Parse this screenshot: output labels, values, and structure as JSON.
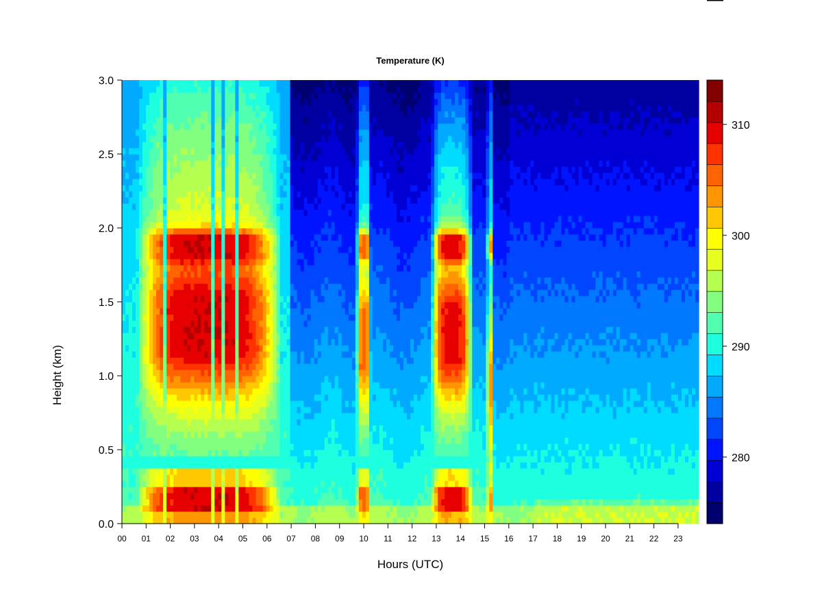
{
  "chart_data": {
    "type": "heatmap",
    "title": "Temperature (K)",
    "xlabel": "Hours (UTC)",
    "ylabel": "Height (km)",
    "x_ticks": [
      "00",
      "01",
      "02",
      "03",
      "04",
      "05",
      "06",
      "07",
      "08",
      "09",
      "10",
      "11",
      "12",
      "13",
      "14",
      "15",
      "16",
      "17",
      "18",
      "19",
      "20",
      "21",
      "22",
      "23"
    ],
    "y_ticks": [
      "0.0",
      "0.5",
      "1.0",
      "1.5",
      "2.0",
      "2.5",
      "3.0"
    ],
    "xlim": [
      0,
      24
    ],
    "ylim": [
      0,
      3.0
    ],
    "colorbar": {
      "ticks": [
        "280",
        "290",
        "300",
        "310"
      ],
      "range": [
        274,
        314
      ],
      "levels": 20,
      "colors": [
        "#00006e",
        "#0000a0",
        "#0000d4",
        "#0014ff",
        "#0046ff",
        "#0078ff",
        "#00aaff",
        "#00dcff",
        "#1effe0",
        "#50ffb0",
        "#82ff80",
        "#b4ff50",
        "#e6ff1e",
        "#ffff00",
        "#ffc800",
        "#ff9600",
        "#ff6400",
        "#ff3200",
        "#e60000",
        "#b40000",
        "#820000"
      ]
    },
    "warm_bands_hours": [
      {
        "start": 0.6,
        "end": 6.6,
        "peak_height_km": 1.3,
        "peak_value": 310
      },
      {
        "start": 9.7,
        "end": 10.3,
        "peak_height_km": 1.2,
        "peak_value": 305
      },
      {
        "start": 12.8,
        "end": 14.5,
        "peak_height_km": 1.25,
        "peak_value": 309
      },
      {
        "start": 15.1,
        "end": 15.4,
        "peak_height_km": 0.9,
        "peak_value": 303
      }
    ],
    "surface_warm_layer_km": [
      0.1,
      0.25
    ]
  }
}
